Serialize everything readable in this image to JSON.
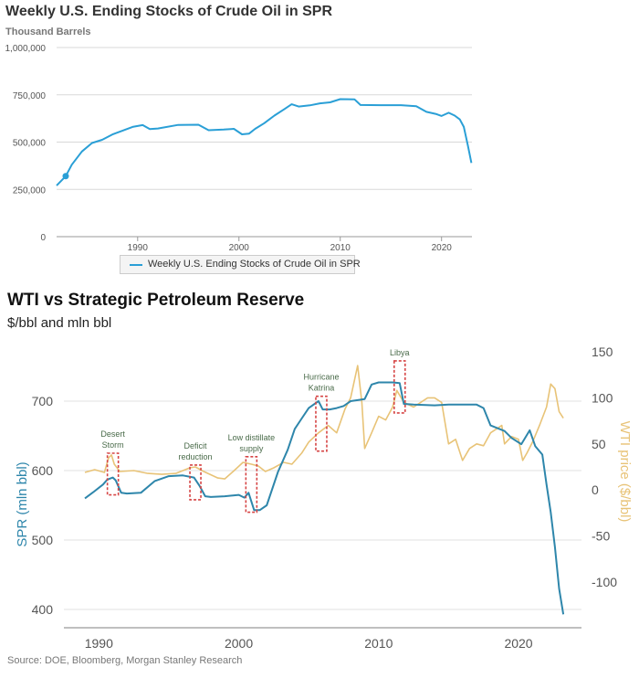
{
  "colors": {
    "top_line": "#2a9fd6",
    "spr_line": "#2e86ab",
    "wti_line": "#e8c377",
    "annotation_box": "#d64545",
    "annotation_text": "#4a6b4a",
    "grid": "#d8d8d8"
  },
  "chart_data": [
    {
      "type": "line",
      "title": "Weekly U.S. Ending Stocks of Crude Oil in SPR",
      "ylabel": "Thousand Barrels",
      "xlabel": "",
      "xlim": [
        1982,
        2023
      ],
      "ylim": [
        0,
        1000000
      ],
      "x_ticks": [
        1990,
        2000,
        2010,
        2020
      ],
      "x_tick_labels": [
        "1990",
        "2000",
        "2010",
        "2020"
      ],
      "y_ticks": [
        0,
        250000,
        500000,
        750000,
        1000000
      ],
      "y_tick_labels": [
        "0",
        "250,000",
        "500,000",
        "750,000",
        "1,000,000"
      ],
      "grid": true,
      "legend": [
        "Weekly U.S. Ending Stocks of Crude Oil in SPR"
      ],
      "legend_position": "bottom",
      "highlight_point": {
        "x": 1982.9,
        "y": 320000
      },
      "series": [
        {
          "name": "Weekly U.S. Ending Stocks of Crude Oil in SPR",
          "x": [
            1982.0,
            1982.9,
            1983.5,
            1984.5,
            1985.5,
            1986.5,
            1987.5,
            1988.5,
            1989.5,
            1990.5,
            1991.2,
            1992.0,
            1994.0,
            1996.0,
            1997.0,
            1998.5,
            1999.5,
            2000.3,
            2001.0,
            2001.6,
            2002.5,
            2003.5,
            2004.5,
            2005.2,
            2005.9,
            2007.0,
            2008.0,
            2009.0,
            2010.0,
            2011.4,
            2012.0,
            2014.0,
            2016.0,
            2017.5,
            2018.5,
            2019.5,
            2020.0,
            2020.7,
            2021.3,
            2021.8,
            2022.2,
            2022.6,
            2022.95
          ],
          "y": [
            270000,
            320000,
            380000,
            450000,
            495000,
            512000,
            540000,
            560000,
            580000,
            590000,
            569000,
            572000,
            591000,
            592000,
            563000,
            566000,
            570000,
            541000,
            545000,
            570000,
            600000,
            640000,
            675000,
            700000,
            688000,
            694000,
            705000,
            710000,
            727000,
            726000,
            696000,
            695000,
            695000,
            690000,
            660000,
            648000,
            638000,
            655000,
            640000,
            620000,
            580000,
            480000,
            390000
          ]
        }
      ]
    },
    {
      "type": "line",
      "title": "WTI vs Strategic Petroleum Reserve",
      "subtitle": "$/bbl and mln bbl",
      "xlabel": "",
      "ylabel": "SPR (mln bbl)",
      "y2label": "WTI price ($/bbl)",
      "xlim": [
        1987.5,
        2024.5
      ],
      "ylim": [
        380,
        770
      ],
      "y2lim": [
        -135,
        162
      ],
      "x_ticks": [
        1990,
        2000,
        2010,
        2020
      ],
      "x_tick_labels": [
        "1990",
        "2000",
        "2010",
        "2020"
      ],
      "y_ticks": [
        400,
        500,
        600,
        700
      ],
      "y_tick_labels": [
        "400",
        "500",
        "600",
        "700"
      ],
      "y2_ticks": [
        -100,
        -50,
        0,
        50,
        100,
        150
      ],
      "y2_tick_labels": [
        "-100",
        "-50",
        "0",
        "50",
        "100",
        "150"
      ],
      "grid": true,
      "series": [
        {
          "name": "SPR (mln bbl)",
          "axis": "left",
          "x": [
            1989.0,
            1989.6,
            1990.3,
            1990.6,
            1991.0,
            1991.2,
            1991.6,
            1992.0,
            1993.0,
            1994.0,
            1995.0,
            1996.0,
            1996.8,
            1997.2,
            1997.6,
            1998.0,
            1999.0,
            2000.0,
            2000.4,
            2000.7,
            2001.1,
            2001.5,
            2002.0,
            2002.8,
            2003.5,
            2004.0,
            2004.5,
            2005.0,
            2005.7,
            2006.0,
            2006.5,
            2007.0,
            2007.5,
            2008.0,
            2009.0,
            2009.5,
            2010.0,
            2011.0,
            2011.5,
            2011.8,
            2012.5,
            2014.0,
            2015.0,
            2016.0,
            2017.0,
            2017.5,
            2018.0,
            2019.0,
            2019.5,
            2020.2,
            2020.8,
            2021.2,
            2021.7,
            2022.0,
            2022.3,
            2022.6,
            2022.9,
            2023.2
          ],
          "y": [
            560,
            569,
            580,
            587,
            590,
            586,
            568,
            567,
            568,
            585,
            592,
            593,
            590,
            578,
            563,
            562,
            563,
            565,
            561,
            568,
            543,
            543,
            550,
            598,
            630,
            660,
            675,
            690,
            700,
            688,
            688,
            690,
            693,
            700,
            703,
            724,
            727,
            727,
            726,
            696,
            695,
            694,
            695,
            695,
            695,
            690,
            665,
            657,
            647,
            638,
            658,
            635,
            623,
            580,
            540,
            490,
            430,
            393
          ]
        },
        {
          "name": "WTI price ($/bbl)",
          "axis": "right",
          "x": [
            1989.0,
            1989.7,
            1990.4,
            1990.7,
            1990.9,
            1991.1,
            1991.5,
            1992.5,
            1993.5,
            1994.5,
            1995.5,
            1996.5,
            1996.9,
            1997.5,
            1998.5,
            1999.0,
            1999.6,
            2000.3,
            2000.9,
            2001.4,
            2001.9,
            2002.5,
            2003.2,
            2003.8,
            2004.5,
            2005.0,
            2005.7,
            2006.4,
            2007.0,
            2007.6,
            2008.0,
            2008.5,
            2008.8,
            2009.0,
            2009.5,
            2010.0,
            2010.5,
            2011.0,
            2011.3,
            2011.8,
            2012.5,
            2013.0,
            2013.5,
            2014.0,
            2014.5,
            2015.0,
            2015.5,
            2016.0,
            2016.5,
            2017.0,
            2017.5,
            2018.0,
            2018.8,
            2019.0,
            2019.5,
            2020.0,
            2020.3,
            2020.6,
            2021.0,
            2021.5,
            2022.0,
            2022.3,
            2022.6,
            2022.9,
            2023.2
          ],
          "y": [
            19,
            22,
            19,
            35,
            38,
            28,
            20,
            21,
            18,
            17,
            18,
            24,
            25,
            20,
            13,
            12,
            20,
            30,
            28,
            26,
            20,
            24,
            30,
            28,
            40,
            52,
            62,
            70,
            62,
            88,
            100,
            135,
            95,
            45,
            62,
            80,
            76,
            90,
            108,
            95,
            90,
            95,
            100,
            100,
            95,
            50,
            55,
            32,
            45,
            50,
            48,
            62,
            70,
            50,
            58,
            55,
            32,
            40,
            52,
            70,
            90,
            115,
            110,
            85,
            78
          ]
        }
      ],
      "annotations": [
        {
          "label_lines": [
            "Desert",
            "Storm"
          ],
          "year": 1991.0,
          "ymin": 565,
          "ymax": 625
        },
        {
          "label_lines": [
            "Deficit",
            "reduction"
          ],
          "year": 1996.9,
          "ymin": 558,
          "ymax": 608
        },
        {
          "label_lines": [
            "Low distillate",
            "supply"
          ],
          "year": 2000.9,
          "ymin": 540,
          "ymax": 620
        },
        {
          "label_lines": [
            "Hurricane",
            "Katrina"
          ],
          "year": 2005.9,
          "ymin": 628,
          "ymax": 707
        },
        {
          "label_lines": [
            "Libya"
          ],
          "year": 2011.5,
          "ymin": 683,
          "ymax": 758
        }
      ]
    }
  ],
  "source": "Source: DOE, Bloomberg, Morgan Stanley Research"
}
